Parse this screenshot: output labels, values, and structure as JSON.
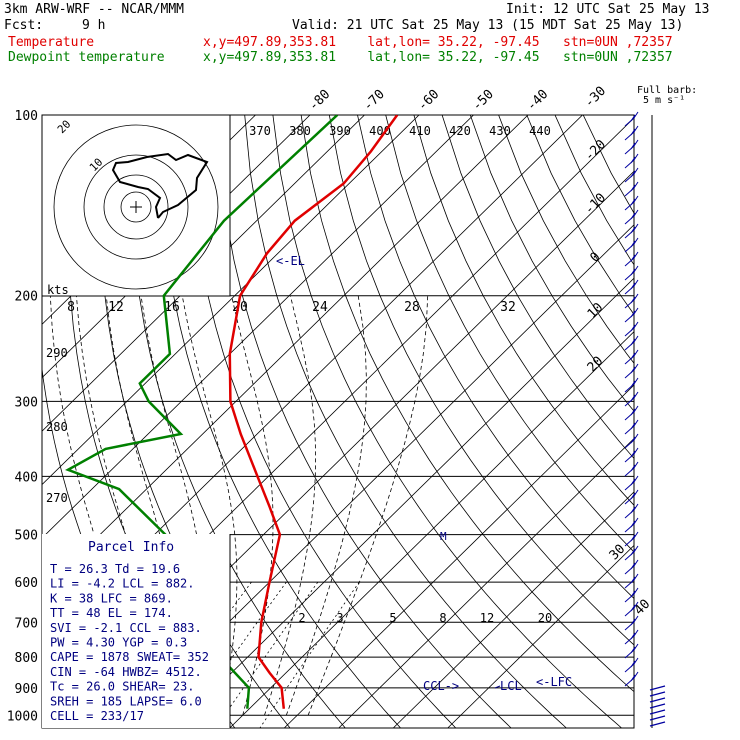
{
  "header": {
    "model": "3km ARW-WRF -- NCAR/MMM",
    "init": "Init: 12 UTC Sat 25 May 13",
    "fcst_label": "Fcst:",
    "fcst_value": "9 h",
    "valid": "Valid: 21 UTC Sat 25 May 13 (15 MDT Sat 25 May 13)",
    "temp_label": "Temperature",
    "dew_label": "Dewpoint temperature",
    "loc_text": "x,y=497.89,353.81    lat,lon= 35.22, -97.45   stn=0UN ,72357"
  },
  "colors": {
    "temperature": "#e00000",
    "dewpoint": "#008000",
    "info": "#000080",
    "barb": "#0000a0"
  },
  "chart_data": {
    "type": "line",
    "title": "",
    "ylabel_ticks": [
      "100",
      "200",
      "300",
      "400",
      "500",
      "600",
      "700",
      "800",
      "900",
      "1000"
    ],
    "pressure_levels": [
      100,
      200,
      300,
      400,
      500,
      600,
      700,
      800,
      900,
      1000
    ],
    "isotherm_labels": [
      "-80",
      "-70",
      "-60",
      "-50",
      "-40",
      "-30",
      "-20",
      "-10",
      "0",
      "10",
      "20",
      "30",
      "40"
    ],
    "isotherm_values": [
      -80,
      -70,
      -60,
      -50,
      -40,
      -30,
      -20,
      -10,
      0,
      10,
      20,
      30,
      40
    ],
    "theta_e_labels": [
      "370",
      "380",
      "390",
      "400",
      "410",
      "420",
      "430",
      "440"
    ],
    "theta_labels": [
      "290",
      "280",
      "270"
    ],
    "mixing_ratio_labels": [
      "2",
      "3",
      "5",
      "8",
      "12",
      "20"
    ],
    "series": [
      {
        "name": "Temperature",
        "points": [
          [
            100,
            -64
          ],
          [
            115,
            -62
          ],
          [
            130,
            -61
          ],
          [
            150,
            -63
          ],
          [
            170,
            -62
          ],
          [
            200,
            -59
          ],
          [
            250,
            -50
          ],
          [
            300,
            -41
          ],
          [
            340,
            -33
          ],
          [
            400,
            -22
          ],
          [
            450,
            -14
          ],
          [
            500,
            -7
          ],
          [
            600,
            0
          ],
          [
            700,
            6
          ],
          [
            800,
            12
          ],
          [
            850,
            17
          ],
          [
            900,
            22
          ],
          [
            975,
            26.3
          ]
        ]
      },
      {
        "name": "Dewpoint temperature",
        "points": [
          [
            100,
            -75
          ],
          [
            150,
            -76
          ],
          [
            200,
            -73
          ],
          [
            250,
            -61
          ],
          [
            280,
            -61
          ],
          [
            300,
            -56
          ],
          [
            340,
            -44
          ],
          [
            360,
            -55
          ],
          [
            390,
            -58
          ],
          [
            420,
            -45
          ],
          [
            500,
            -28
          ],
          [
            600,
            -10
          ],
          [
            700,
            -2
          ],
          [
            800,
            5
          ],
          [
            900,
            16
          ],
          [
            975,
            19.6
          ]
        ]
      }
    ],
    "annotations": {
      "el": "<-EL",
      "lfc": "<-LFC",
      "ccl": "CCL->",
      "lcl": "LCL",
      "m_marker": "M"
    },
    "full_barb_note_line1": "Full barb:",
    "full_barb_note_line2": "5 m s⁻¹",
    "hodograph": {
      "units": "kts",
      "speed_labels": [
        "8",
        "12",
        "16",
        "20",
        "24",
        "28",
        "32"
      ],
      "ring_labels": [
        "20",
        "10"
      ]
    },
    "parcel_info": {
      "title": "Parcel Info",
      "rows": [
        "T  =    26.3  Td =  19.6",
        "LI =    -4.2  LCL =  882.",
        "K  =     38  LFC =  869.",
        "TT =     48  EL  =  174.",
        "SVI =   -2.1  CCL =  883.",
        "PW =   4.30  YGP =   0.3",
        "CAPE =  1878  SWEAT=  352",
        "CIN =    -64  HWBZ= 4512.",
        "Tc =   26.0  SHEAR=  23.",
        "SREH =   185  LAPSE=  6.0",
        "CELL = 233/17"
      ]
    }
  }
}
